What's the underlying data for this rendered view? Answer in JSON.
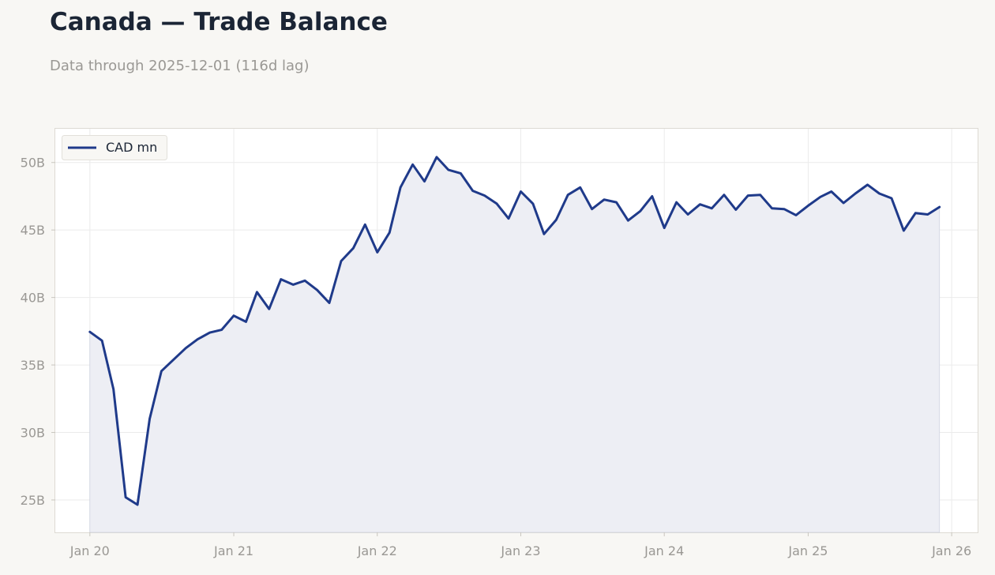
{
  "header": {
    "title": "Canada — Trade Balance",
    "subtitle": "Data through 2025-12-01 (116d lag)"
  },
  "colors": {
    "line": "#1f3a8a",
    "fill": "#edeef4",
    "plot_bg": "#ffffff",
    "page_bg": "#f8f7f4",
    "grid": "#ebebeb",
    "tick_text": "#9a9894"
  },
  "chart_data": {
    "type": "area",
    "title": "Canada — Trade Balance",
    "subtitle": "Data through 2025-12-01 (116d lag)",
    "xlabel": "",
    "ylabel": "",
    "ylim": [
      22.6,
      52.5
    ],
    "xlim": [
      "2019-10-05",
      "2026-03-08"
    ],
    "y_ticks": [
      25,
      30,
      35,
      40,
      45,
      50
    ],
    "y_tick_labels": [
      "25B",
      "30B",
      "35B",
      "40B",
      "45B",
      "50B"
    ],
    "x_ticks": [
      "2020-01-01",
      "2021-01-01",
      "2022-01-01",
      "2023-01-01",
      "2024-01-01",
      "2025-01-01",
      "2026-01-01"
    ],
    "x_tick_labels": [
      "Jan 20",
      "Jan 21",
      "Jan 22",
      "Jan 23",
      "Jan 24",
      "Jan 25",
      "Jan 26"
    ],
    "grid": true,
    "legend": "top-left",
    "series": [
      {
        "name": "CAD mn",
        "x": [
          "2020-01",
          "2020-02",
          "2020-03",
          "2020-04",
          "2020-05",
          "2020-06",
          "2020-07",
          "2020-08",
          "2020-09",
          "2020-10",
          "2020-11",
          "2020-12",
          "2021-01",
          "2021-02",
          "2021-03",
          "2021-04",
          "2021-05",
          "2021-06",
          "2021-07",
          "2021-08",
          "2021-09",
          "2021-10",
          "2021-11",
          "2021-12",
          "2022-01",
          "2022-02",
          "2022-03",
          "2022-04",
          "2022-05",
          "2022-06",
          "2022-07",
          "2022-08",
          "2022-09",
          "2022-10",
          "2022-11",
          "2022-12",
          "2023-01",
          "2023-02",
          "2023-03",
          "2023-04",
          "2023-05",
          "2023-06",
          "2023-07",
          "2023-08",
          "2023-09",
          "2023-10",
          "2023-11",
          "2023-12",
          "2024-01",
          "2024-02",
          "2024-03",
          "2024-04",
          "2024-05",
          "2024-06",
          "2024-07",
          "2024-08",
          "2024-09",
          "2024-10",
          "2024-11",
          "2024-12",
          "2025-01",
          "2025-02",
          "2025-03",
          "2025-04",
          "2025-05",
          "2025-06",
          "2025-07",
          "2025-08",
          "2025-09",
          "2025-10",
          "2025-11",
          "2025-12"
        ],
        "values": [
          37.45,
          36.8,
          33.2,
          25.2,
          24.65,
          31.0,
          34.55,
          35.4,
          36.25,
          36.9,
          37.4,
          37.6,
          38.65,
          38.2,
          40.4,
          39.15,
          41.35,
          40.95,
          41.25,
          40.55,
          39.6,
          42.7,
          43.65,
          45.4,
          43.35,
          44.8,
          48.15,
          49.85,
          48.6,
          50.4,
          49.45,
          49.2,
          47.9,
          47.55,
          46.95,
          45.85,
          47.85,
          46.95,
          44.7,
          45.75,
          47.6,
          48.15,
          46.55,
          47.25,
          47.05,
          45.7,
          46.4,
          47.5,
          45.15,
          47.05,
          46.15,
          46.9,
          46.6,
          47.6,
          46.5,
          47.55,
          47.6,
          46.6,
          46.55,
          46.1,
          46.8,
          47.45,
          47.85,
          47.0,
          47.7,
          48.35,
          47.7,
          47.35,
          44.95,
          46.25,
          46.15,
          46.7
        ]
      }
    ]
  }
}
